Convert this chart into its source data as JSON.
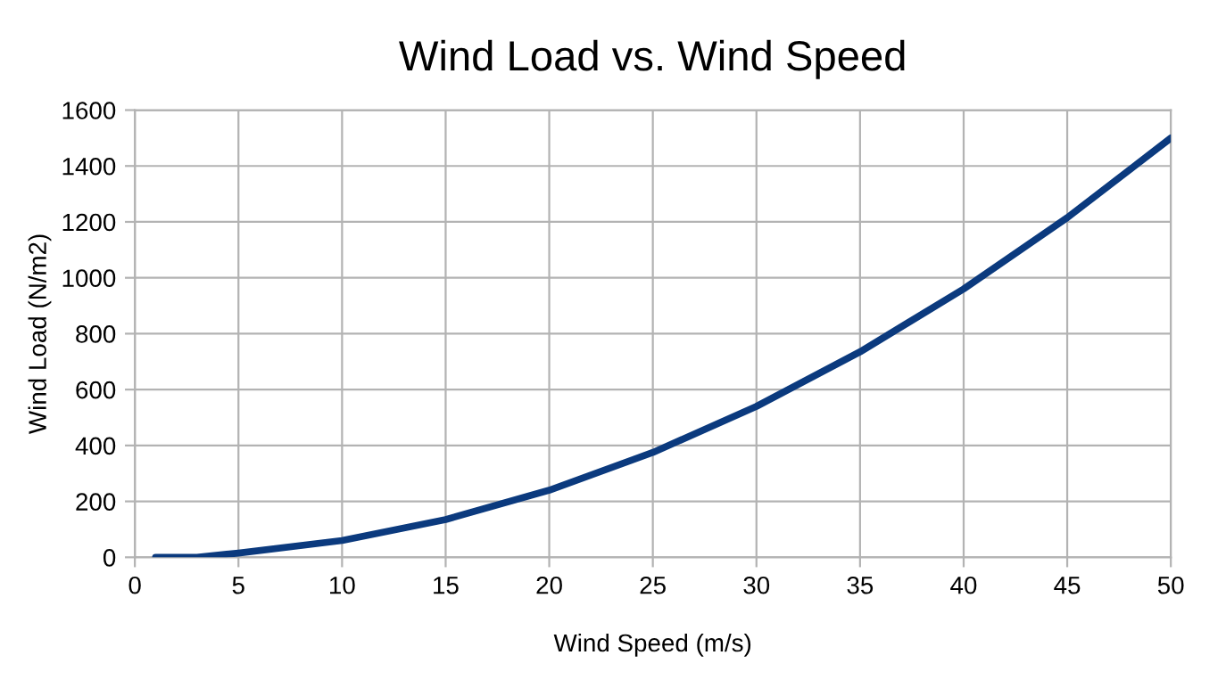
{
  "chart_data": {
    "type": "line",
    "title": "Wind Load vs. Wind Speed",
    "xlabel": "Wind Speed (m/s)",
    "ylabel": "Wind Load (N/m2)",
    "x": [
      1,
      3,
      5,
      10,
      15,
      20,
      25,
      30,
      35,
      40,
      45,
      50
    ],
    "series": [
      {
        "color": "#0b3a7e",
        "values": [
          0,
          0,
          15,
          60,
          135,
          240,
          375,
          540,
          735,
          960,
          1215,
          1500
        ]
      }
    ],
    "xlim": [
      0,
      50
    ],
    "xticks": [
      0,
      5,
      10,
      15,
      20,
      25,
      30,
      35,
      40,
      45,
      50
    ],
    "ylim": [
      0,
      1600
    ],
    "yticks": [
      0,
      200,
      400,
      600,
      800,
      1000,
      1200,
      1400,
      1600
    ],
    "grid": true,
    "legend": false,
    "marker": "none",
    "line_style": "solid"
  }
}
